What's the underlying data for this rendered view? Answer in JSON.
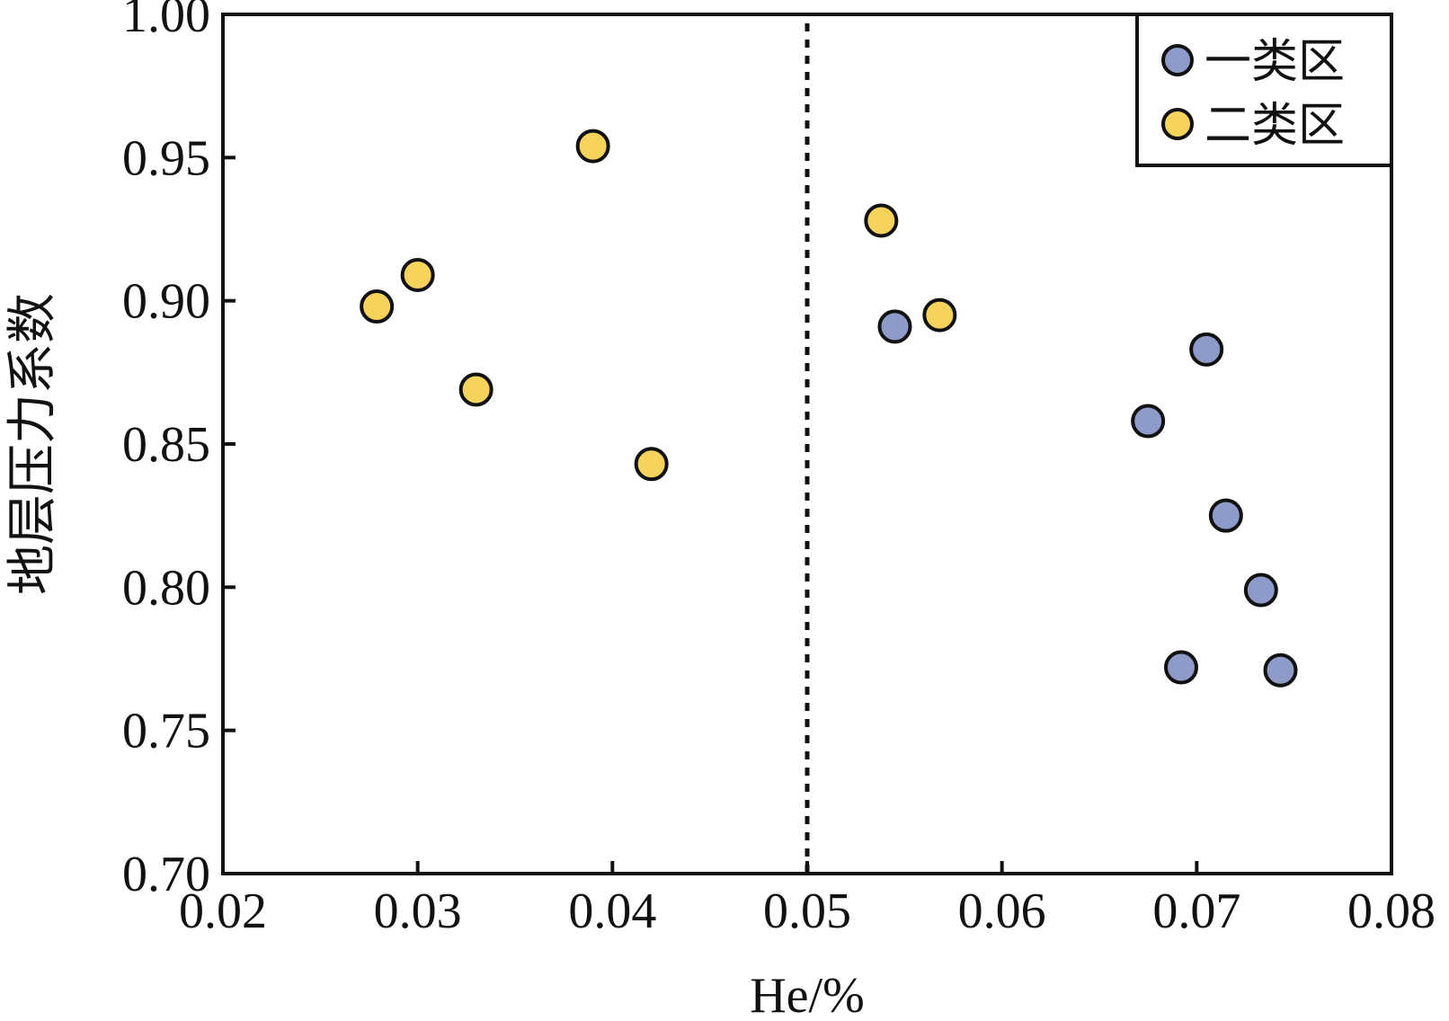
{
  "chart_data": {
    "type": "scatter",
    "title": "",
    "xlabel": "He/%",
    "ylabel": "地层压力系数",
    "xlim": [
      0.02,
      0.08
    ],
    "ylim": [
      0.7,
      1.0
    ],
    "xticks": [
      "0.02",
      "0.03",
      "0.04",
      "0.05",
      "0.06",
      "0.07",
      "0.08"
    ],
    "yticks": [
      "0.70",
      "0.75",
      "0.80",
      "0.85",
      "0.90",
      "0.95",
      "1.00"
    ],
    "divider_x": 0.05,
    "legend_position": "top-right",
    "series": [
      {
        "name": "一类区",
        "color": "#8E9BC8",
        "points": [
          {
            "x": 0.0545,
            "y": 0.891
          },
          {
            "x": 0.0705,
            "y": 0.883
          },
          {
            "x": 0.0675,
            "y": 0.858
          },
          {
            "x": 0.0715,
            "y": 0.825
          },
          {
            "x": 0.0733,
            "y": 0.799
          },
          {
            "x": 0.0692,
            "y": 0.772
          },
          {
            "x": 0.0743,
            "y": 0.771
          }
        ]
      },
      {
        "name": "二类区",
        "color": "#F6D35A",
        "points": [
          {
            "x": 0.039,
            "y": 0.954
          },
          {
            "x": 0.0538,
            "y": 0.928
          },
          {
            "x": 0.03,
            "y": 0.909
          },
          {
            "x": 0.0279,
            "y": 0.898
          },
          {
            "x": 0.0568,
            "y": 0.895
          },
          {
            "x": 0.033,
            "y": 0.869
          },
          {
            "x": 0.042,
            "y": 0.843
          }
        ]
      }
    ]
  }
}
